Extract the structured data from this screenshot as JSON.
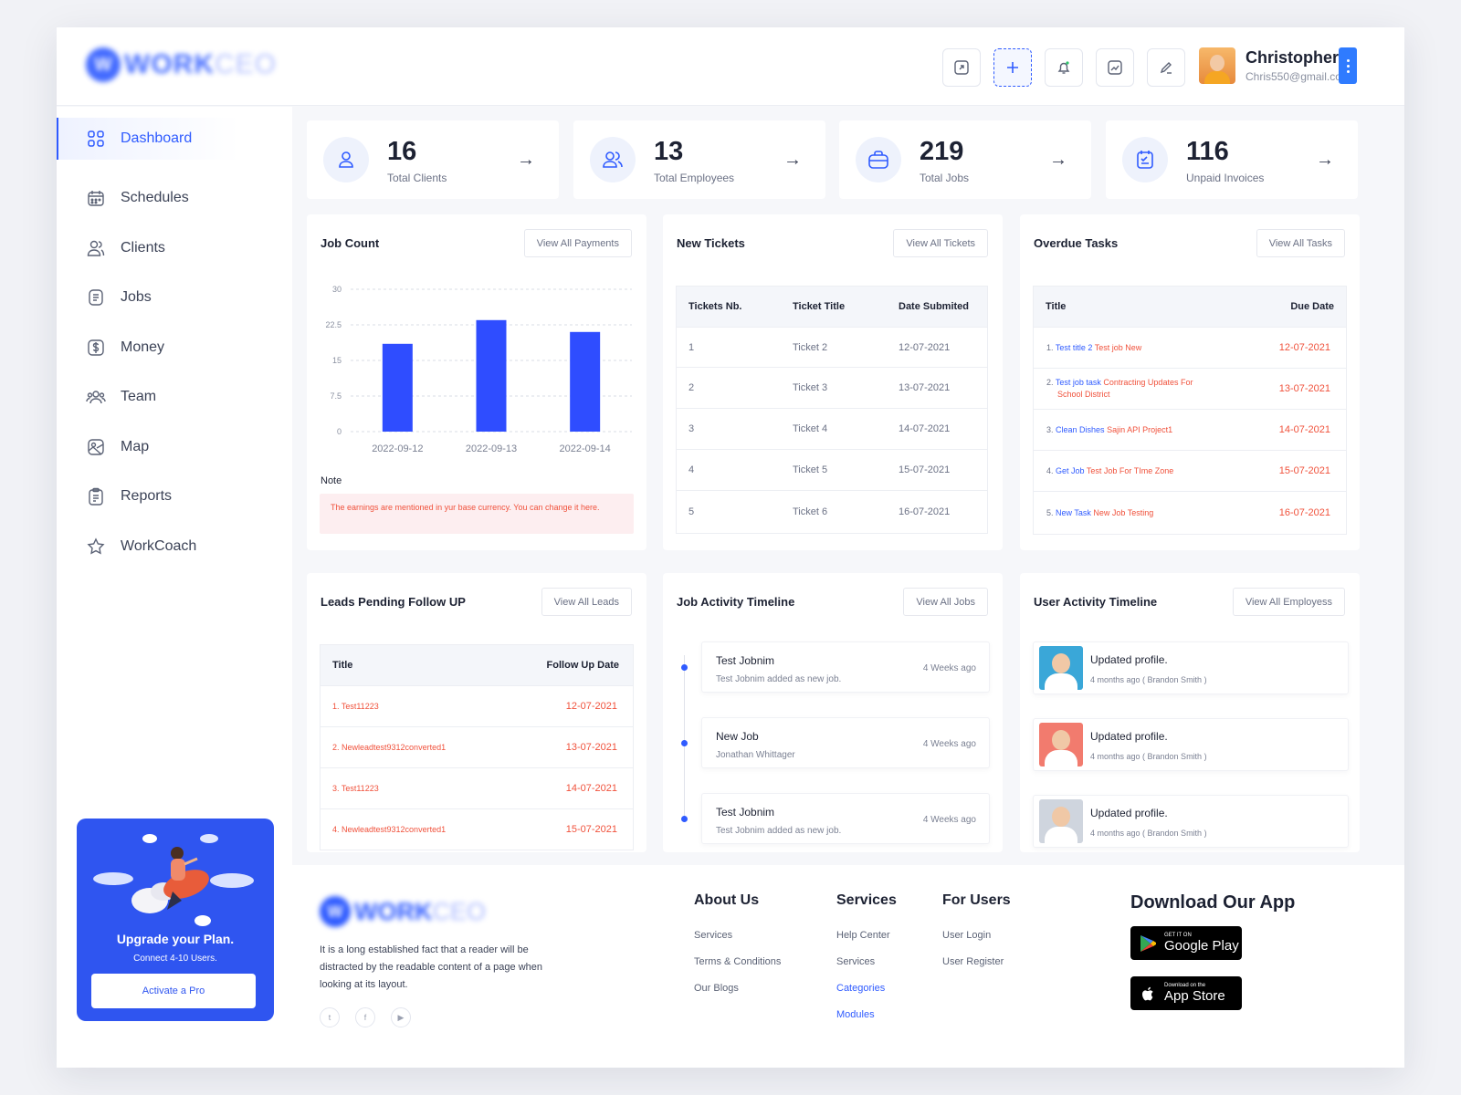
{
  "header": {
    "logo_text": "WORK",
    "logo_text_light": "CEO",
    "user": {
      "name": "Christopher",
      "email": "Chris550@gmail.com"
    }
  },
  "sidebar": {
    "items": [
      {
        "label": "Dashboard",
        "icon": "grid-icon"
      },
      {
        "label": "Schedules",
        "icon": "calendar-icon"
      },
      {
        "label": "Clients",
        "icon": "users-icon"
      },
      {
        "label": "Jobs",
        "icon": "document-icon"
      },
      {
        "label": "Money",
        "icon": "dollar-icon"
      },
      {
        "label": "Team",
        "icon": "team-icon"
      },
      {
        "label": "Map",
        "icon": "map-icon"
      },
      {
        "label": "Reports",
        "icon": "clipboard-icon"
      },
      {
        "label": "WorkCoach",
        "icon": "star-icon"
      }
    ],
    "promo": {
      "title": "Upgrade your Plan.",
      "subtitle": "Connect 4-10 Users.",
      "button": "Activate a Pro"
    }
  },
  "stats": [
    {
      "value": "16",
      "label": "Total Clients"
    },
    {
      "value": "13",
      "label": "Total Employees"
    },
    {
      "value": "219",
      "label": "Total Jobs"
    },
    {
      "value": "116",
      "label": "Unpaid Invoices"
    }
  ],
  "job_count": {
    "title": "Job Count",
    "button": "View All Payments",
    "note_title": "Note",
    "note": "The earnings are mentioned in yur base currency. You can change it here."
  },
  "chart_data": {
    "type": "bar",
    "categories": [
      "2022-09-12",
      "2022-09-13",
      "2022-09-14"
    ],
    "values": [
      18.5,
      23.5,
      21
    ],
    "yticks": [
      "0",
      "7.5",
      "15",
      "22.5",
      "30"
    ],
    "ylim": [
      0,
      30
    ],
    "color": "#2f4dff",
    "grid": true
  },
  "tickets": {
    "title": "New Tickets",
    "button": "View All Tickets",
    "headers": [
      "Tickets Nb.",
      "Ticket Title",
      "Date Submited"
    ],
    "rows": [
      [
        "1",
        "Ticket 2",
        "12-07-2021"
      ],
      [
        "2",
        "Ticket 3",
        "13-07-2021"
      ],
      [
        "3",
        "Ticket 4",
        "14-07-2021"
      ],
      [
        "4",
        "Ticket 5",
        "15-07-2021"
      ],
      [
        "5",
        "Ticket 6",
        "16-07-2021"
      ]
    ]
  },
  "overdue": {
    "title": "Overdue Tasks",
    "button": "View All Tasks",
    "headers": [
      "Title",
      "Due Date"
    ],
    "rows": [
      {
        "num": "1.",
        "blue": "Test title 2",
        "red": "Test job New",
        "red2": "",
        "date": "12-07-2021"
      },
      {
        "num": "2.",
        "blue": "Test job task",
        "red": "Contracting Updates For",
        "red2": "School District",
        "date": "13-07-2021"
      },
      {
        "num": "3.",
        "blue": "Clean Dishes",
        "red": "Sajin API Project1",
        "red2": "",
        "date": "14-07-2021"
      },
      {
        "num": "4.",
        "blue": "Get Job",
        "red": "Test Job For TIme Zone",
        "red2": "",
        "date": "15-07-2021"
      },
      {
        "num": "5.",
        "blue": "New Task",
        "red": "New Job Testing",
        "red2": "",
        "date": "16-07-2021"
      }
    ]
  },
  "leads": {
    "title": "Leads Pending Follow UP",
    "button": "View All Leads",
    "headers": [
      "Title",
      "Follow Up Date"
    ],
    "rows": [
      {
        "title": "1. Test11223",
        "date": "12-07-2021"
      },
      {
        "title": "2. Newleadtest9312converted1",
        "date": "13-07-2021"
      },
      {
        "title": "3. Test11223",
        "date": "14-07-2021"
      },
      {
        "title": "4. Newleadtest9312converted1",
        "date": "15-07-2021"
      }
    ]
  },
  "job_timeline": {
    "title": "Job Activity Timeline",
    "button": "View All Jobs",
    "items": [
      {
        "title": "Test Jobnim",
        "desc": "Test Jobnim added as new job.",
        "time": "4 Weeks ago"
      },
      {
        "title": "New Job",
        "desc": "Jonathan Whittager",
        "time": "4 Weeks ago"
      },
      {
        "title": "Test Jobnim",
        "desc": "Test Jobnim added as new job.",
        "time": "4 Weeks ago"
      }
    ]
  },
  "user_timeline": {
    "title": "User Activity Timeline",
    "button": "View All Employess",
    "items": [
      {
        "title": "Updated profile.",
        "desc": "4 months ago ( Brandon Smith )",
        "bg": "#3aa7d8"
      },
      {
        "title": "Updated profile.",
        "desc": "4 months ago ( Brandon Smith )",
        "bg": "#f27b6e"
      },
      {
        "title": "Updated profile.",
        "desc": "4 months ago ( Brandon Smith )",
        "bg": "#cfd5de"
      }
    ]
  },
  "footer": {
    "logo_text": "WORK",
    "logo_text_light": "CEO",
    "desc": "It is a long established fact that a reader will be distracted by the readable content of a page when looking at its layout.",
    "cols": [
      {
        "title": "About Us",
        "links": [
          "Services",
          "Terms & Conditions",
          "Our Blogs"
        ]
      },
      {
        "title": "Services",
        "links": [
          "Help Center",
          "Services",
          "Categories",
          "Modules"
        ]
      },
      {
        "title": "For Users",
        "links": [
          "User Login",
          "User Register"
        ]
      }
    ],
    "download": {
      "title": "Download Our App",
      "google_small": "GET IT ON",
      "google_big": "Google Play",
      "apple_small": "Download on the",
      "apple_big": "App Store"
    }
  }
}
